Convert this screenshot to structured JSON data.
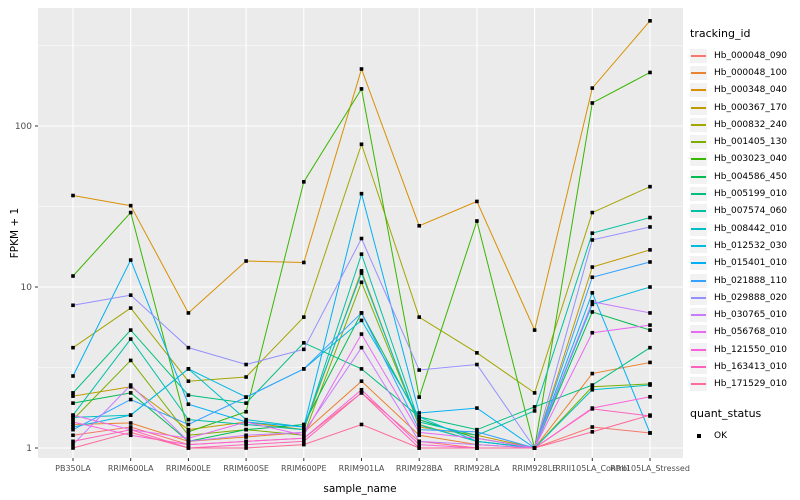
{
  "figure": {
    "background": "#FFFFFF",
    "panel_background": "#EBEBEB",
    "gridline_color": "#FFFFFF",
    "tick_label_color": "#4D4D4D",
    "axis_title_color": "#000000",
    "point_color": "#000000"
  },
  "chart_data": {
    "type": "line",
    "title": "",
    "xlabel": "sample_name",
    "ylabel": "FPKM + 1",
    "y_scale": "log10",
    "y_ticks": [
      1,
      10,
      100
    ],
    "ylim": [
      0.87,
      540
    ],
    "grid": "on",
    "legend_position": "right",
    "legend_title": "tracking_id",
    "quant_legend_title": "quant_status",
    "quant_legend_items": [
      {
        "label": "OK",
        "shape": "square",
        "color": "#000000"
      }
    ],
    "categories": [
      "PB350LA",
      "RRIM600LA",
      "RRIM600LE",
      "RRIM600SE",
      "RRIM600PE",
      "RRIM901LA",
      "RRIM928BA",
      "RRIM928LA",
      "RRIM928LE",
      "RRII105LA_Control",
      "RRII105LA_Stressed"
    ],
    "series": [
      {
        "name": "Hb_000048_090",
        "color": "#F8766D",
        "values": [
          1.2,
          1.35,
          1.05,
          1.1,
          1.15,
          2.2,
          1.1,
          1.0,
          1.0,
          1.35,
          1.24
        ]
      },
      {
        "name": "Hb_000048_100",
        "color": "#EA8331",
        "values": [
          1.4,
          1.43,
          1.1,
          1.17,
          1.25,
          2.6,
          1.2,
          1.05,
          1.0,
          2.9,
          3.4
        ]
      },
      {
        "name": "Hb_000348_040",
        "color": "#D89000",
        "values": [
          37,
          32,
          6.9,
          14.5,
          14.2,
          226,
          24,
          34,
          5.4,
          172,
          450
        ]
      },
      {
        "name": "Hb_000367_170",
        "color": "#C09B00",
        "values": [
          2.1,
          2.4,
          1.3,
          1.45,
          1.3,
          12.6,
          1.35,
          1.2,
          1.0,
          13.3,
          17
        ]
      },
      {
        "name": "Hb_000832_240",
        "color": "#A3A500",
        "values": [
          4.2,
          7.4,
          2.6,
          2.76,
          6.5,
          77,
          6.5,
          3.9,
          2.2,
          29,
          42
        ]
      },
      {
        "name": "Hb_001405_130",
        "color": "#7CAE00",
        "values": [
          1.5,
          3.5,
          1.2,
          1.3,
          1.2,
          10.7,
          1.4,
          1.1,
          1.0,
          2.4,
          2.5
        ]
      },
      {
        "name": "Hb_003023_040",
        "color": "#39B600",
        "values": [
          11.7,
          29,
          1.26,
          1.68,
          45,
          170,
          2.07,
          25.7,
          1.0,
          139,
          215
        ]
      },
      {
        "name": "Hb_004586_450",
        "color": "#00BB4E",
        "values": [
          1.9,
          2.2,
          1.1,
          1.3,
          1.4,
          6.9,
          1.5,
          1.15,
          1.0,
          7.0,
          5.4
        ]
      },
      {
        "name": "Hb_005199_010",
        "color": "#00BF7D",
        "values": [
          2.2,
          5.4,
          2.13,
          1.9,
          4.5,
          3.1,
          1.56,
          1.3,
          1.8,
          2.46,
          4.2
        ]
      },
      {
        "name": "Hb_007574_060",
        "color": "#00C1A3",
        "values": [
          1.6,
          4.75,
          1.5,
          1.4,
          1.3,
          16,
          1.45,
          1.2,
          1.7,
          21.6,
          27
        ]
      },
      {
        "name": "Hb_008442_010",
        "color": "#00BFC4",
        "values": [
          1.55,
          1.6,
          3.1,
          1.5,
          1.35,
          12.2,
          1.39,
          1.1,
          1.0,
          2.3,
          2.46
        ]
      },
      {
        "name": "Hb_012532_030",
        "color": "#00BAE0",
        "values": [
          1.35,
          1.6,
          3.1,
          2.07,
          3.1,
          6.2,
          1.56,
          1.1,
          1.0,
          7.8,
          10
        ]
      },
      {
        "name": "Hb_015401_010",
        "color": "#00B0F6",
        "values": [
          2.8,
          14.7,
          1.87,
          1.45,
          1.35,
          38,
          1.65,
          1.77,
          1.0,
          9.2,
          1.24
        ]
      },
      {
        "name": "Hb_021888_110",
        "color": "#35A2FF",
        "values": [
          1.3,
          2.0,
          1.4,
          2.07,
          3.1,
          6.9,
          1.3,
          1.26,
          1.0,
          11.5,
          14.3
        ]
      },
      {
        "name": "Hb_029888_020",
        "color": "#9590FF",
        "values": [
          7.7,
          8.9,
          4.2,
          3.3,
          4.1,
          20,
          3.05,
          3.3,
          1.0,
          19.6,
          23.6
        ]
      },
      {
        "name": "Hb_030765_010",
        "color": "#C77CFF",
        "values": [
          1.05,
          2.46,
          1.1,
          1.2,
          1.25,
          4.2,
          1.1,
          1.05,
          1.0,
          8.1,
          6.9
        ]
      },
      {
        "name": "Hb_056768_010",
        "color": "#E76BF3",
        "values": [
          1.6,
          1.3,
          1.15,
          1.45,
          1.2,
          5.1,
          1.25,
          1.15,
          1.0,
          5.2,
          5.8
        ]
      },
      {
        "name": "Hb_121550_010",
        "color": "#FA62DB",
        "values": [
          1.45,
          1.2,
          1.05,
          1.1,
          1.15,
          2.3,
          1.05,
          1.0,
          1.0,
          1.77,
          2.08
        ]
      },
      {
        "name": "Hb_163413_010",
        "color": "#FF62BC",
        "values": [
          1.1,
          1.3,
          1.0,
          1.05,
          1.1,
          2.2,
          1.0,
          1.0,
          1.0,
          1.75,
          1.58
        ]
      },
      {
        "name": "Hb_171529_010",
        "color": "#FF6A98",
        "values": [
          1.0,
          1.25,
          1.0,
          1.0,
          1.05,
          1.4,
          1.0,
          1.0,
          1.0,
          1.26,
          1.6
        ]
      }
    ]
  }
}
